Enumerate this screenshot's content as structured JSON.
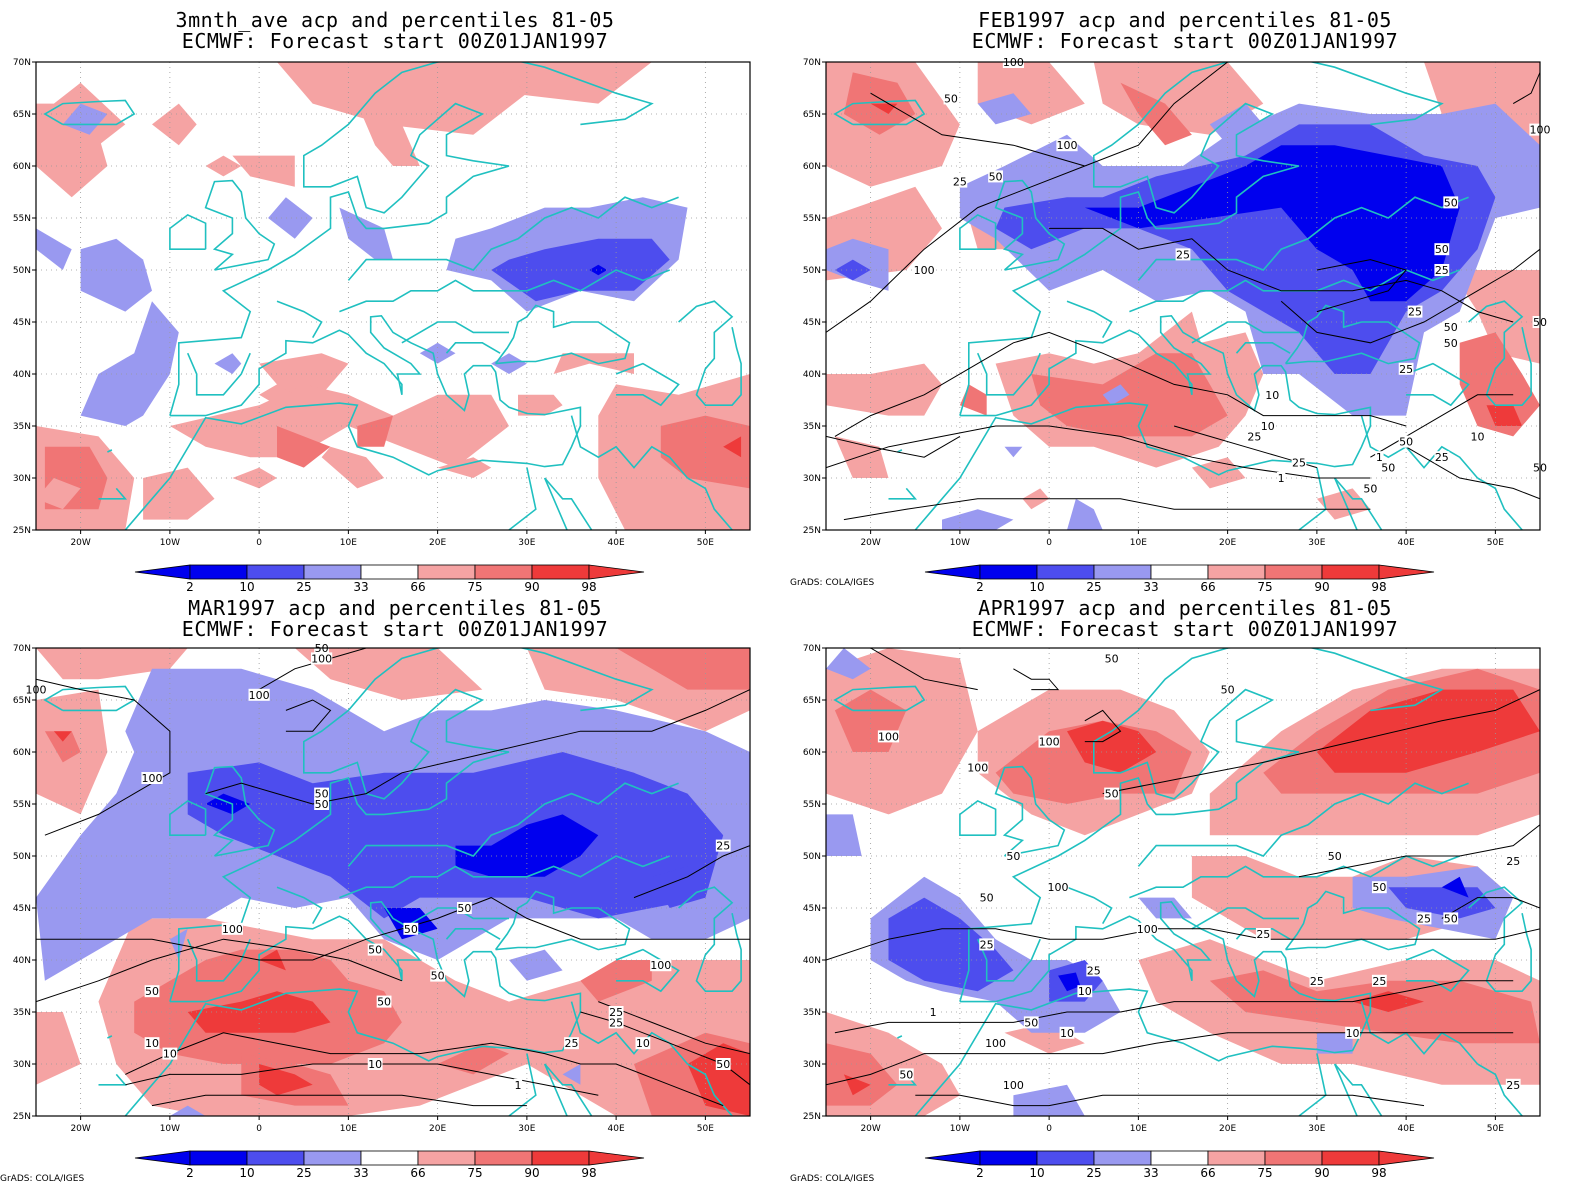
{
  "colors": {
    "blue_dark": "#0000ee",
    "blue_mid": "#4d4dee",
    "blue_light": "#9999f0",
    "red_light": "#f5a3a3",
    "red_mid": "#f07575",
    "red_dark": "#ee3a3a",
    "coast": "#20c0c0",
    "contour": "#000000"
  },
  "axes": {
    "lat_labels": [
      "70N",
      "65N",
      "60N",
      "55N",
      "50N",
      "45N",
      "40N",
      "35N",
      "30N",
      "25N"
    ],
    "lon_labels": [
      "20W",
      "10W",
      "0",
      "10E",
      "20E",
      "30E",
      "40E",
      "50E"
    ]
  },
  "colorbar": {
    "labels": [
      "2",
      "10",
      "25",
      "33",
      "66",
      "75",
      "90",
      "98"
    ]
  },
  "credit": "GrADS: COLA/IGES",
  "panels": [
    {
      "title1": "3mnth_ave acp and percentiles 81-05",
      "title2": "ECMWF: Forecast start 00Z01JAN1997",
      "contour_labels": []
    },
    {
      "title1": "FEB1997 acp and percentiles 81-05",
      "title2": "ECMWF: Forecast start 00Z01JAN1997",
      "contour_labels": [
        "100",
        "50",
        "25",
        "100",
        "100",
        "50",
        "25",
        "25",
        "25",
        "50",
        "100",
        "50",
        "50",
        "50",
        "50",
        "25",
        "10",
        "25",
        "10",
        "1",
        "1",
        "50",
        "50",
        "50",
        "10",
        "25",
        "25",
        "50"
      ]
    },
    {
      "title1": "MAR1997 acp and percentiles 81-05",
      "title2": "ECMWF: Forecast start 00Z01JAN1997",
      "contour_labels": [
        "100",
        "100",
        "100",
        "100",
        "50",
        "50",
        "50",
        "25",
        "50",
        "50",
        "100",
        "50",
        "50",
        "100",
        "50",
        "50",
        "25",
        "25",
        "10",
        "10",
        "10",
        "1",
        "10",
        "25",
        "50"
      ]
    },
    {
      "title1": "APR1997 acp and percentiles 81-05",
      "title2": "ECMWF: Forecast start 00Z01JAN1997",
      "contour_labels": [
        "50",
        "50",
        "100",
        "100",
        "100",
        "50",
        "50",
        "50",
        "50",
        "100",
        "50",
        "100",
        "25",
        "25",
        "25",
        "10",
        "10",
        "1",
        "50",
        "100",
        "50",
        "100",
        "25",
        "25",
        "25",
        "50",
        "25",
        "10",
        "25"
      ]
    }
  ]
}
